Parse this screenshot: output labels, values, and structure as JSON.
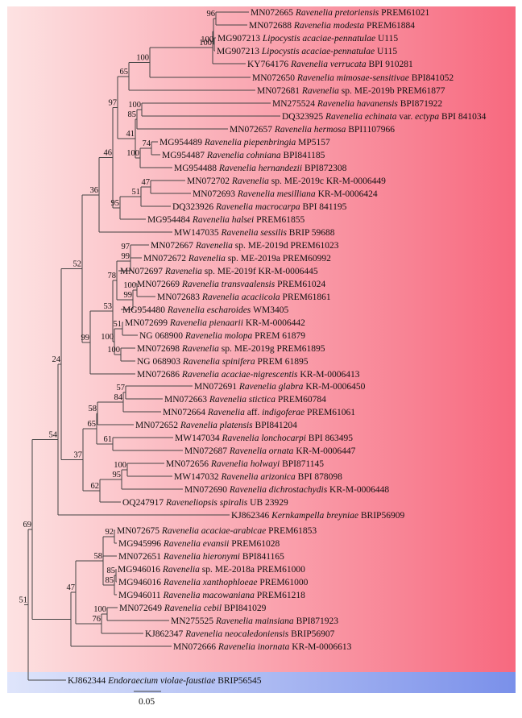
{
  "accent_colors": {
    "ingroup_band_left": "#fde2e2",
    "ingroup_band_right": "#f7697f",
    "outgroup_band_left": "#dfe5fb",
    "outgroup_band_right": "#7a90ea"
  },
  "scale_bar": {
    "value": 0.05,
    "label": "0.05"
  },
  "taxa": [
    {
      "acc": "MN072665",
      "genus": "Ravenelia",
      "ep": "pretoriensis",
      "voucher": "PREM61021"
    },
    {
      "acc": "MN072688",
      "genus": "Ravenelia",
      "ep": "modesta",
      "voucher": "PREM61884"
    },
    {
      "acc": "MG907213",
      "genus": "Lipocystis",
      "ep": "acaciae-pennatulae",
      "voucher": "U115"
    },
    {
      "acc": "MG907213",
      "genus": "Lipocystis",
      "ep": "acaciae-pennatulae",
      "voucher": "U115"
    },
    {
      "acc": "KY764176",
      "genus": "Ravenelia",
      "ep": "verrucata",
      "voucher": "BPI 910281"
    },
    {
      "acc": "MN072650",
      "genus": "Ravenelia",
      "ep": "mimosae-sensitivae",
      "voucher": "BPI841052"
    },
    {
      "acc": "MN072681",
      "genus": "Ravenelia",
      "ep": "sp. ME-2019b",
      "voucher": "PREM61877"
    },
    {
      "acc": "MN275524",
      "genus": "Ravenelia",
      "ep": "havanensis",
      "voucher": "BPI871922"
    },
    {
      "acc": "DQ323925",
      "genus": "Ravenelia",
      "ep": "echinata var. ectypa",
      "voucher": "BPI 841034"
    },
    {
      "acc": "MN072657",
      "genus": "Ravenelia",
      "ep": "hermosa",
      "voucher": "BPI1107966"
    },
    {
      "acc": "MG954489",
      "genus": "Ravenelia",
      "ep": "piepenbringia",
      "voucher": "MP5157"
    },
    {
      "acc": "MG954487",
      "genus": "Ravenelia",
      "ep": "cohniana",
      "voucher": "BPI841185"
    },
    {
      "acc": "MG954488",
      "genus": "Ravenelia",
      "ep": "hernandezii",
      "voucher": "BPI872308"
    },
    {
      "acc": "MN072702",
      "genus": "Ravenelia",
      "ep": "sp. ME-2019c",
      "voucher": "KR-M-0006449"
    },
    {
      "acc": "MN072693",
      "genus": "Ravenelia",
      "ep": "mesilliana",
      "voucher": "KR-M-0006424"
    },
    {
      "acc": "DQ323926",
      "genus": "Ravenelia",
      "ep": "macrocarpa",
      "voucher": "BPI 841195"
    },
    {
      "acc": "MG954484",
      "genus": "Ravenelia",
      "ep": "halsei",
      "voucher": "PREM61855"
    },
    {
      "acc": "MW147035",
      "genus": "Ravenelia",
      "ep": "sessilis",
      "voucher": "BRIP 59688"
    },
    {
      "acc": "MN072667",
      "genus": "Ravenelia",
      "ep": "sp. ME-2019d",
      "voucher": "PREM61023"
    },
    {
      "acc": "MN072672",
      "genus": "Ravenelia",
      "ep": "sp. ME-2019a",
      "voucher": "PREM60992"
    },
    {
      "acc": "MN072697",
      "genus": "Ravenelia",
      "ep": "sp. ME-2019f",
      "voucher": "KR-M-0006445"
    },
    {
      "acc": "MN072669",
      "genus": "Ravenelia",
      "ep": "transvaalensis",
      "voucher": "PREM61024"
    },
    {
      "acc": "MN072683",
      "genus": "Ravenelia",
      "ep": "acaciicola",
      "voucher": "PREM61861"
    },
    {
      "acc": "MG954480",
      "genus": "Ravenelia",
      "ep": "escharoides",
      "voucher": "WM3405"
    },
    {
      "acc": "MN072699",
      "genus": "Ravenelia",
      "ep": "pienaarii",
      "voucher": "KR-M-0006442"
    },
    {
      "acc": "NG 068900",
      "genus": "Ravenelia",
      "ep": "molopa",
      "voucher": "PREM 61879"
    },
    {
      "acc": "MN072698",
      "genus": "Ravenelia",
      "ep": "sp. ME-2019g",
      "voucher": "PREM61895"
    },
    {
      "acc": "NG 068903",
      "genus": "Ravenelia",
      "ep": "spinifera",
      "voucher": "PREM 61895"
    },
    {
      "acc": "MN072686",
      "genus": "Ravenelia",
      "ep": "acaciae-nigrescentis",
      "voucher": "KR-M-0006413"
    },
    {
      "acc": "MN072691",
      "genus": "Ravenelia",
      "ep": "glabra",
      "voucher": "KR-M-0006450"
    },
    {
      "acc": "MN072663",
      "genus": "Ravenelia",
      "ep": "stictica",
      "voucher": "PREM60784"
    },
    {
      "acc": "MN072664",
      "genus": "Ravenelia",
      "ep": "aff. indigoferae",
      "voucher": "PREM61061"
    },
    {
      "acc": "MN072652",
      "genus": "Ravenelia",
      "ep": "platensis",
      "voucher": "BPI841204"
    },
    {
      "acc": "MW147034",
      "genus": "Ravenelia",
      "ep": "lonchocarpi",
      "voucher": "BPI 863495"
    },
    {
      "acc": "MN072687",
      "genus": "Ravenelia",
      "ep": "ornata",
      "voucher": "KR-M-0006447"
    },
    {
      "acc": "MN072656",
      "genus": "Ravenelia",
      "ep": "holwayi",
      "voucher": "BPI871145"
    },
    {
      "acc": "MW147032",
      "genus": "Ravenelia",
      "ep": "arizonica",
      "voucher": "BPI 878098"
    },
    {
      "acc": "MN072690",
      "genus": "Ravenelia",
      "ep": "dichrostachydis",
      "voucher": "KR-M-0006448"
    },
    {
      "acc": "OQ247917",
      "genus": "Raveneliopsis",
      "ep": "spiralis",
      "voucher": "UB 23929"
    },
    {
      "acc": "KJ862346",
      "genus": "Kernkampella",
      "ep": "breyniae",
      "voucher": "BRIP56909"
    },
    {
      "acc": "MN072675",
      "genus": "Ravenelia",
      "ep": "acaciae-arabicae",
      "voucher": "PREM61853"
    },
    {
      "acc": "MG945996",
      "genus": "Ravenelia",
      "ep": "evansii",
      "voucher": "PREM61028"
    },
    {
      "acc": "MN072651",
      "genus": "Ravenelia",
      "ep": "hieronymi",
      "voucher": "BPI841165"
    },
    {
      "acc": "MG946016",
      "genus": "Ravenelia",
      "ep": "sp. ME-2018a",
      "voucher": "PREM61000"
    },
    {
      "acc": "MG946016",
      "genus": "Ravenelia",
      "ep": "xanthophloeae",
      "voucher": "PREM61000"
    },
    {
      "acc": "MG946011",
      "genus": "Ravenelia",
      "ep": "macowaniana",
      "voucher": "PREM61218"
    },
    {
      "acc": "MN072649",
      "genus": "Ravenelia",
      "ep": "cebil",
      "voucher": "BPI841029"
    },
    {
      "acc": "MN275525",
      "genus": "Ravenelia",
      "ep": "mainsiana",
      "voucher": "BPI871923"
    },
    {
      "acc": "KJ862347",
      "genus": "Ravenelia",
      "ep": "neocaledoniensis",
      "voucher": "BRIP56907"
    },
    {
      "acc": "MN072666",
      "genus": "Ravenelia",
      "ep": "inornata",
      "voucher": "KR-M-0006613"
    },
    {
      "acc": "KJ862344",
      "genus": "Endoraecium",
      "ep": "violae-faustiae",
      "voucher": "BRIP56545"
    }
  ],
  "bootstrap": [
    "96",
    "100",
    "100",
    "100",
    "65",
    "97",
    "100",
    "85",
    "41",
    "74",
    "100",
    "47",
    "51",
    "95",
    "46",
    "36",
    "97",
    "99",
    "78",
    "100",
    "99",
    "53",
    "51",
    "99",
    "100",
    "100",
    "52",
    "24",
    "57",
    "84",
    "58",
    "65",
    "61",
    "37",
    "100",
    "95",
    "62",
    "54",
    "92",
    "58",
    "85",
    "85",
    "100",
    "76",
    "47",
    "69",
    "51"
  ]
}
